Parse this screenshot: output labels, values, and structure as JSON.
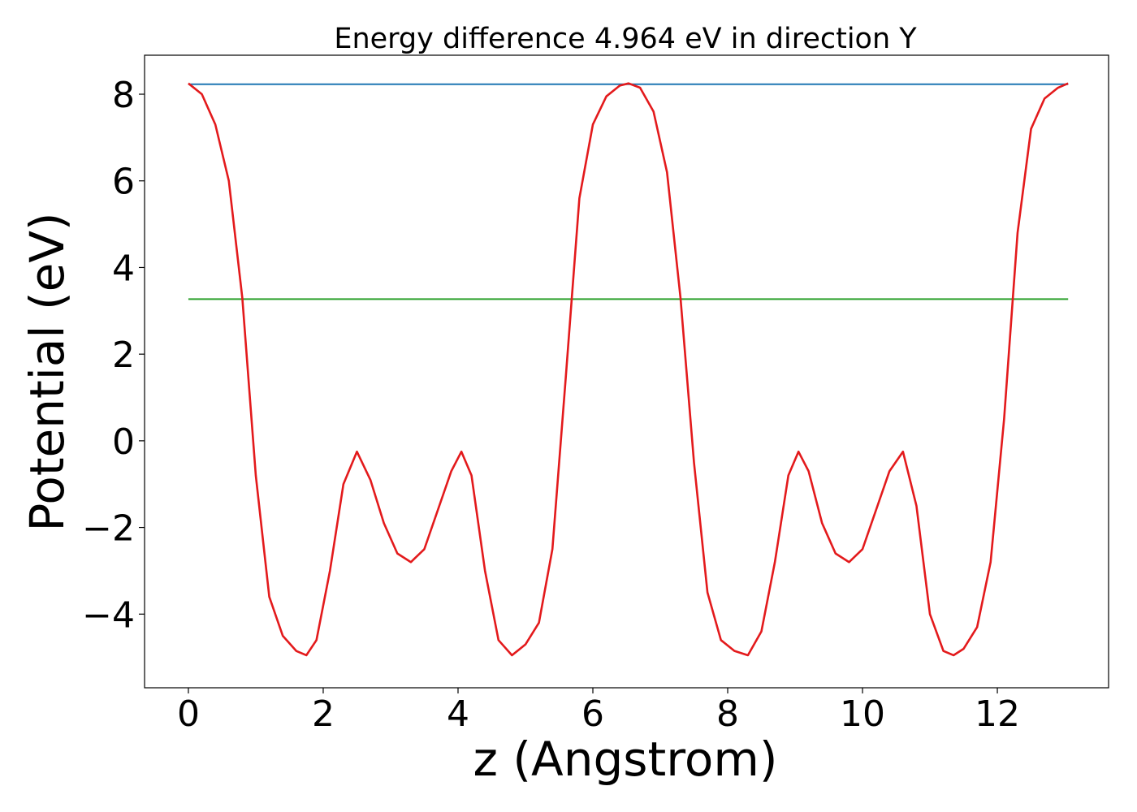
{
  "chart_data": {
    "type": "line",
    "title": "Energy difference 4.964 eV in direction Y",
    "xlabel": "z (Angstrom)",
    "ylabel": "Potential (eV)",
    "xlim": [
      -0.65,
      13.65
    ],
    "ylim": [
      -5.7,
      8.9
    ],
    "xticks": [
      0,
      2,
      4,
      6,
      8,
      10,
      12
    ],
    "xtick_labels": [
      "0",
      "2",
      "4",
      "6",
      "8",
      "10",
      "12"
    ],
    "yticks": [
      -4,
      -2,
      0,
      2,
      4,
      6,
      8
    ],
    "ytick_labels": [
      "−4",
      "−2",
      "0",
      "2",
      "4",
      "6",
      "8"
    ],
    "grid": false,
    "legend": "none",
    "series": [
      {
        "color": "#1f77b4",
        "style": "horizontal",
        "x": [
          0,
          13.05
        ],
        "values": [
          8.23,
          8.23
        ]
      },
      {
        "color": "#2ca02c",
        "style": "horizontal",
        "x": [
          0,
          13.05
        ],
        "values": [
          3.27,
          3.27
        ]
      },
      {
        "color": "#e31a1c",
        "style": "curve",
        "x": [
          0,
          0.2,
          0.4,
          0.6,
          0.8,
          1.0,
          1.2,
          1.4,
          1.6,
          1.75,
          1.9,
          2.1,
          2.3,
          2.5,
          2.7,
          2.9,
          3.1,
          3.3,
          3.5,
          3.7,
          3.9,
          4.05,
          4.2,
          4.4,
          4.6,
          4.8,
          5.0,
          5.2,
          5.4,
          5.6,
          5.8,
          6.0,
          6.2,
          6.4,
          6.53,
          6.7,
          6.9,
          7.1,
          7.3,
          7.5,
          7.7,
          7.9,
          8.1,
          8.3,
          8.5,
          8.7,
          8.9,
          9.05,
          9.2,
          9.4,
          9.6,
          9.8,
          10.0,
          10.2,
          10.4,
          10.6,
          10.8,
          11.0,
          11.2,
          11.35,
          11.5,
          11.7,
          11.9,
          12.1,
          12.3,
          12.5,
          12.7,
          12.9,
          13.05
        ],
        "values": [
          8.25,
          8.0,
          7.3,
          6.0,
          3.3,
          -0.8,
          -3.6,
          -4.5,
          -4.85,
          -4.95,
          -4.6,
          -3.0,
          -1.0,
          -0.25,
          -0.9,
          -1.9,
          -2.6,
          -2.8,
          -2.5,
          -1.6,
          -0.7,
          -0.25,
          -0.8,
          -3.0,
          -4.6,
          -4.95,
          -4.7,
          -4.2,
          -2.5,
          1.5,
          5.6,
          7.3,
          7.95,
          8.2,
          8.25,
          8.15,
          7.6,
          6.2,
          3.3,
          -0.5,
          -3.5,
          -4.6,
          -4.85,
          -4.95,
          -4.4,
          -2.8,
          -0.8,
          -0.25,
          -0.7,
          -1.9,
          -2.6,
          -2.8,
          -2.5,
          -1.6,
          -0.7,
          -0.25,
          -1.5,
          -4.0,
          -4.85,
          -4.95,
          -4.8,
          -4.3,
          -2.8,
          0.5,
          4.8,
          7.2,
          7.9,
          8.15,
          8.25
        ]
      }
    ]
  }
}
